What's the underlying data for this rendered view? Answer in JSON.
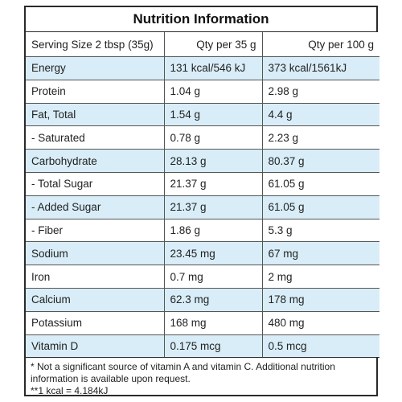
{
  "title": "Nutrition Information",
  "header": {
    "serving": "Serving Size 2 tbsp (35g)",
    "col2": "Qty per 35 g",
    "col3": "Qty per 100 g"
  },
  "rows": [
    {
      "name": "Energy",
      "per35": "131 kcal/546 kJ",
      "per100": "373 kcal/1561kJ"
    },
    {
      "name": "Protein",
      "per35": "1.04 g",
      "per100": "2.98 g"
    },
    {
      "name": "Fat, Total",
      "per35": "1.54 g",
      "per100": "4.4 g"
    },
    {
      "name": "- Saturated",
      "per35": "0.78 g",
      "per100": "2.23 g"
    },
    {
      "name": "Carbohydrate",
      "per35": "28.13 g",
      "per100": "80.37 g"
    },
    {
      "name": "- Total Sugar",
      "per35": "21.37 g",
      "per100": "61.05 g"
    },
    {
      "name": "- Added Sugar",
      "per35": "21.37 g",
      "per100": "61.05 g"
    },
    {
      "name": "- Fiber",
      "per35": "1.86 g",
      "per100": "5.3 g"
    },
    {
      "name": "Sodium",
      "per35": "23.45 mg",
      "per100": "67 mg"
    },
    {
      "name": "Iron",
      "per35": "0.7 mg",
      "per100": "2 mg"
    },
    {
      "name": "Calcium",
      "per35": "62.3 mg",
      "per100": "178 mg"
    },
    {
      "name": "Potassium",
      "per35": "168 mg",
      "per100": "480 mg"
    },
    {
      "name": "Vitamin D",
      "per35": "0.175 mcg",
      "per100": "0.5 mcg"
    }
  ],
  "footnotes": [
    "* Not a significant source of vitamin A and vitamin C. Additional nutrition information is available upon request.",
    "**1 kcal = 4.184kJ"
  ],
  "colors": {
    "stripe": "#d8edf7",
    "border": "#2a2a2a"
  }
}
